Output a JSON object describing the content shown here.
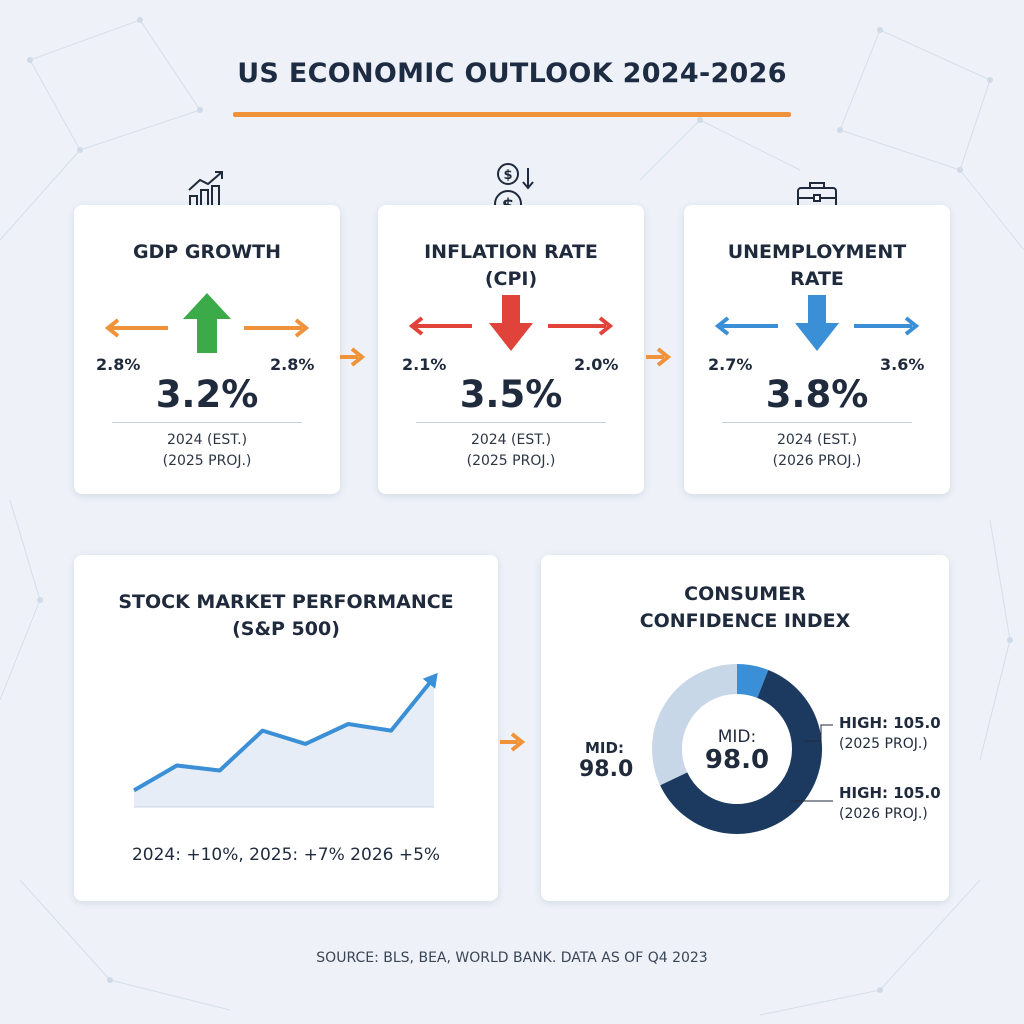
{
  "title": "US ECONOMIC OUTLOOK 2024-2026",
  "colors": {
    "accent_orange": "#f0923a",
    "green": "#3bab4a",
    "red": "#e0433a",
    "blue": "#3a8fd6",
    "navy": "#1c3a60",
    "light_blue": "#c8d7e8"
  },
  "cards": {
    "gdp": {
      "icon": "bar-chart-trend-icon",
      "title": "GDP GROWTH",
      "left_value": "2.8%",
      "main_value": "3.2%",
      "right_value": "2.8%",
      "sub_line1": "2024 (EST.)",
      "sub_line2": "(2025 PROJ.)",
      "direction": "up"
    },
    "inflation": {
      "icon": "dollar-down-icon",
      "title_line1": "INFLATION RATE",
      "title_line2": "(CPI)",
      "left_value": "2.1%",
      "main_value": "3.5%",
      "right_value": "2.0%",
      "sub_line1": "2024 (EST.)",
      "sub_line2": "(2025 PROJ.)",
      "direction": "down"
    },
    "unemployment": {
      "icon": "briefcase-icon",
      "title_line1": "UNEMPLOYMENT",
      "title_line2": "RATE",
      "left_value": "2.7%",
      "main_value": "3.8%",
      "right_value": "3.6%",
      "sub_line1": "2024 (EST.)",
      "sub_line2": "(2026 PROJ.)",
      "direction": "down"
    }
  },
  "stock": {
    "title_line1": "STOCK MARKET PERFORMANCE",
    "title_line2": "(S&P 500)",
    "caption": "2024: +10%, 2025: +7% 2026 +5%"
  },
  "consumer": {
    "title_line1": "CONSUMER",
    "title_line2": "CONFIDENCE INDEX",
    "center_label": "MID:",
    "center_value": "98.0",
    "left_label": "MID:",
    "left_value": "98.0",
    "right_top_value": "HIGH: 105.0",
    "right_top_sub": "(2025 PROJ.)",
    "right_bottom_value": "HIGH: 105.0",
    "right_bottom_sub": "(2026 PROJ.)"
  },
  "chart_data": [
    {
      "type": "line",
      "title": "STOCK MARKET PERFORMANCE (S&P 500)",
      "xlabel": "",
      "ylabel": "",
      "grid": false,
      "x": [
        0,
        1,
        2,
        3,
        4,
        5,
        6,
        7
      ],
      "series": [
        {
          "values": [
            10,
            25,
            22,
            46,
            38,
            50,
            46,
            78
          ]
        }
      ],
      "ylim": [
        0,
        100
      ],
      "annotation": "2024: +10%, 2025: +7% 2026 +5%"
    },
    {
      "type": "pie",
      "title": "CONSUMER CONFIDENCE INDEX",
      "style": "donut",
      "slices": [
        {
          "label": "",
          "value": 6,
          "color": "#3a8fd6"
        },
        {
          "label": "",
          "value": 62,
          "color": "#1c3a60"
        },
        {
          "label": "",
          "value": 32,
          "color": "#c8d7e8"
        }
      ],
      "center_text": "MID: 98.0"
    }
  ],
  "source": "SOURCE: BLS, BEA, WORLD BANK. DATA AS OF Q4 2023"
}
